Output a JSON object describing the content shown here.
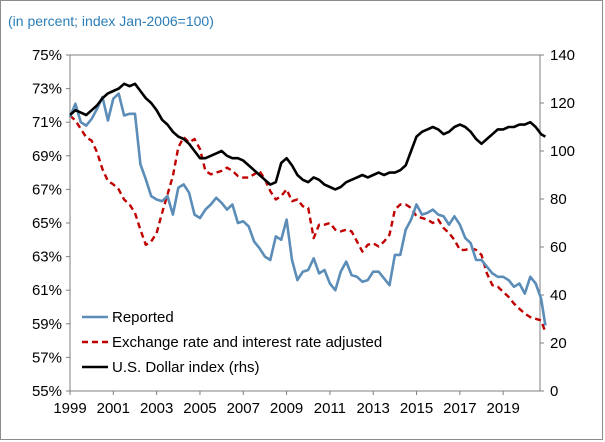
{
  "subtitle": "(in percent; index Jan-2006=100)",
  "chart_data": {
    "type": "line",
    "subtitle": "(in percent; index Jan-2006=100)",
    "x_ticks": [
      "1999",
      "2001",
      "2003",
      "2005",
      "2007",
      "2009",
      "2011",
      "2013",
      "2015",
      "2017",
      "2019"
    ],
    "x_range": [
      1999,
      2020.7
    ],
    "y_left": {
      "ticks": [
        "55%",
        "57%",
        "59%",
        "61%",
        "63%",
        "65%",
        "67%",
        "69%",
        "71%",
        "73%",
        "75%"
      ],
      "range": [
        55,
        75
      ]
    },
    "y_right": {
      "ticks": [
        "0",
        "20",
        "40",
        "60",
        "80",
        "100",
        "120",
        "140"
      ],
      "range": [
        0,
        140
      ]
    },
    "grid": false,
    "legend": {
      "placement": "bottom-left",
      "entries": [
        "Reported",
        "Exchange rate and interest rate adjusted",
        "U.S. Dollar index (rhs)"
      ]
    },
    "series": [
      {
        "name": "Reported",
        "axis": "left",
        "color": "#5b8db8",
        "style": "solid",
        "points": [
          [
            1999.0,
            71.3
          ],
          [
            1999.25,
            72.1
          ],
          [
            1999.5,
            71.0
          ],
          [
            1999.75,
            70.8
          ],
          [
            2000.0,
            71.2
          ],
          [
            2000.25,
            71.8
          ],
          [
            2000.5,
            72.5
          ],
          [
            2000.75,
            71.1
          ],
          [
            2001.0,
            72.4
          ],
          [
            2001.25,
            72.7
          ],
          [
            2001.5,
            71.4
          ],
          [
            2001.75,
            71.5
          ],
          [
            2002.0,
            71.5
          ],
          [
            2002.25,
            68.5
          ],
          [
            2002.5,
            67.6
          ],
          [
            2002.75,
            66.6
          ],
          [
            2003.0,
            66.4
          ],
          [
            2003.25,
            66.3
          ],
          [
            2003.5,
            66.6
          ],
          [
            2003.75,
            65.5
          ],
          [
            2004.0,
            67.1
          ],
          [
            2004.25,
            67.3
          ],
          [
            2004.5,
            66.8
          ],
          [
            2004.75,
            65.5
          ],
          [
            2005.0,
            65.3
          ],
          [
            2005.25,
            65.8
          ],
          [
            2005.5,
            66.1
          ],
          [
            2005.75,
            66.5
          ],
          [
            2006.0,
            66.2
          ],
          [
            2006.25,
            65.8
          ],
          [
            2006.5,
            66.1
          ],
          [
            2006.75,
            65.0
          ],
          [
            2007.0,
            65.1
          ],
          [
            2007.25,
            64.8
          ],
          [
            2007.5,
            63.9
          ],
          [
            2007.75,
            63.5
          ],
          [
            2008.0,
            63.0
          ],
          [
            2008.25,
            62.8
          ],
          [
            2008.5,
            64.2
          ],
          [
            2008.75,
            64.0
          ],
          [
            2009.0,
            65.2
          ],
          [
            2009.25,
            62.8
          ],
          [
            2009.5,
            61.6
          ],
          [
            2009.75,
            62.1
          ],
          [
            2010.0,
            62.2
          ],
          [
            2010.25,
            62.9
          ],
          [
            2010.5,
            62.0
          ],
          [
            2010.75,
            62.2
          ],
          [
            2011.0,
            61.4
          ],
          [
            2011.25,
            61.0
          ],
          [
            2011.5,
            62.1
          ],
          [
            2011.75,
            62.7
          ],
          [
            2012.0,
            61.9
          ],
          [
            2012.25,
            61.8
          ],
          [
            2012.5,
            61.5
          ],
          [
            2012.75,
            61.6
          ],
          [
            2013.0,
            62.1
          ],
          [
            2013.25,
            62.1
          ],
          [
            2013.5,
            61.7
          ],
          [
            2013.75,
            61.3
          ],
          [
            2014.0,
            63.1
          ],
          [
            2014.25,
            63.1
          ],
          [
            2014.5,
            64.6
          ],
          [
            2014.75,
            65.2
          ],
          [
            2015.0,
            66.1
          ],
          [
            2015.25,
            65.5
          ],
          [
            2015.5,
            65.6
          ],
          [
            2015.75,
            65.8
          ],
          [
            2016.0,
            65.5
          ],
          [
            2016.25,
            65.4
          ],
          [
            2016.5,
            64.9
          ],
          [
            2016.75,
            65.4
          ],
          [
            2017.0,
            64.9
          ],
          [
            2017.25,
            64.1
          ],
          [
            2017.5,
            63.8
          ],
          [
            2017.75,
            62.8
          ],
          [
            2018.0,
            62.8
          ],
          [
            2018.25,
            62.4
          ],
          [
            2018.5,
            62.0
          ],
          [
            2018.75,
            61.8
          ],
          [
            2019.0,
            61.8
          ],
          [
            2019.25,
            61.6
          ],
          [
            2019.5,
            61.2
          ],
          [
            2019.75,
            61.4
          ],
          [
            2020.0,
            60.8
          ],
          [
            2020.25,
            61.8
          ],
          [
            2020.5,
            61.4
          ],
          [
            2020.75,
            60.5
          ],
          [
            2020.95,
            58.9
          ]
        ]
      },
      {
        "name": "Exchange rate and interest rate adjusted",
        "axis": "left",
        "color": "#c00000",
        "style": "dashed",
        "points": [
          [
            1999.0,
            71.4
          ],
          [
            1999.25,
            71.1
          ],
          [
            1999.5,
            70.6
          ],
          [
            1999.75,
            70.1
          ],
          [
            2000.0,
            69.9
          ],
          [
            2000.25,
            69.2
          ],
          [
            2000.5,
            68.2
          ],
          [
            2000.75,
            67.5
          ],
          [
            2001.0,
            67.3
          ],
          [
            2001.25,
            67.0
          ],
          [
            2001.5,
            66.4
          ],
          [
            2001.75,
            66.1
          ],
          [
            2002.0,
            65.6
          ],
          [
            2002.25,
            64.6
          ],
          [
            2002.5,
            63.7
          ],
          [
            2002.75,
            63.9
          ],
          [
            2003.0,
            64.4
          ],
          [
            2003.25,
            65.6
          ],
          [
            2003.5,
            66.7
          ],
          [
            2003.75,
            67.8
          ],
          [
            2004.0,
            69.5
          ],
          [
            2004.25,
            70.1
          ],
          [
            2004.5,
            69.8
          ],
          [
            2004.75,
            70.0
          ],
          [
            2005.0,
            69.4
          ],
          [
            2005.25,
            68.1
          ],
          [
            2005.5,
            67.9
          ],
          [
            2005.75,
            68.0
          ],
          [
            2006.0,
            68.1
          ],
          [
            2006.25,
            68.3
          ],
          [
            2006.5,
            68.1
          ],
          [
            2006.75,
            67.8
          ],
          [
            2007.0,
            67.7
          ],
          [
            2007.25,
            67.7
          ],
          [
            2007.5,
            67.9
          ],
          [
            2007.75,
            68.1
          ],
          [
            2008.0,
            67.6
          ],
          [
            2008.25,
            66.9
          ],
          [
            2008.5,
            66.4
          ],
          [
            2008.75,
            66.6
          ],
          [
            2009.0,
            67.0
          ],
          [
            2009.25,
            66.3
          ],
          [
            2009.5,
            66.4
          ],
          [
            2009.75,
            66.0
          ],
          [
            2010.0,
            65.9
          ],
          [
            2010.25,
            64.1
          ],
          [
            2010.5,
            64.9
          ],
          [
            2010.75,
            64.9
          ],
          [
            2011.0,
            65.0
          ],
          [
            2011.25,
            64.6
          ],
          [
            2011.5,
            64.5
          ],
          [
            2011.75,
            64.6
          ],
          [
            2012.0,
            64.5
          ],
          [
            2012.25,
            63.9
          ],
          [
            2012.5,
            63.3
          ],
          [
            2012.75,
            63.7
          ],
          [
            2013.0,
            63.8
          ],
          [
            2013.25,
            63.6
          ],
          [
            2013.5,
            63.9
          ],
          [
            2013.75,
            64.3
          ],
          [
            2014.0,
            65.8
          ],
          [
            2014.25,
            66.1
          ],
          [
            2014.5,
            66.1
          ],
          [
            2014.75,
            65.9
          ],
          [
            2015.0,
            65.4
          ],
          [
            2015.25,
            65.3
          ],
          [
            2015.5,
            65.2
          ],
          [
            2015.75,
            65.0
          ],
          [
            2016.0,
            65.2
          ],
          [
            2016.25,
            64.7
          ],
          [
            2016.5,
            64.4
          ],
          [
            2016.75,
            64.0
          ],
          [
            2017.0,
            63.4
          ],
          [
            2017.25,
            63.4
          ],
          [
            2017.5,
            63.5
          ],
          [
            2017.75,
            63.4
          ],
          [
            2018.0,
            63.1
          ],
          [
            2018.25,
            62.0
          ],
          [
            2018.5,
            61.3
          ],
          [
            2018.75,
            61.2
          ],
          [
            2019.0,
            60.9
          ],
          [
            2019.25,
            60.6
          ],
          [
            2019.5,
            60.2
          ],
          [
            2019.75,
            59.9
          ],
          [
            2020.0,
            59.6
          ],
          [
            2020.25,
            59.4
          ],
          [
            2020.5,
            59.3
          ],
          [
            2020.75,
            59.2
          ],
          [
            2020.95,
            58.5
          ]
        ]
      },
      {
        "name": "U.S. Dollar index (rhs)",
        "axis": "right",
        "color": "#000000",
        "style": "solid",
        "points": [
          [
            1999.0,
            115
          ],
          [
            1999.25,
            117
          ],
          [
            1999.5,
            116
          ],
          [
            1999.75,
            115
          ],
          [
            2000.0,
            117
          ],
          [
            2000.25,
            119
          ],
          [
            2000.5,
            122
          ],
          [
            2000.75,
            124
          ],
          [
            2001.0,
            125
          ],
          [
            2001.25,
            126
          ],
          [
            2001.5,
            128
          ],
          [
            2001.75,
            127
          ],
          [
            2002.0,
            128
          ],
          [
            2002.25,
            125
          ],
          [
            2002.5,
            122
          ],
          [
            2002.75,
            120
          ],
          [
            2003.0,
            117
          ],
          [
            2003.25,
            113
          ],
          [
            2003.5,
            111
          ],
          [
            2003.75,
            108
          ],
          [
            2004.0,
            106
          ],
          [
            2004.25,
            105
          ],
          [
            2004.5,
            103
          ],
          [
            2004.75,
            100
          ],
          [
            2005.0,
            97
          ],
          [
            2005.25,
            97
          ],
          [
            2005.5,
            98
          ],
          [
            2005.75,
            99
          ],
          [
            2006.0,
            100
          ],
          [
            2006.25,
            98
          ],
          [
            2006.5,
            97
          ],
          [
            2006.75,
            97
          ],
          [
            2007.0,
            96
          ],
          [
            2007.25,
            94
          ],
          [
            2007.5,
            92
          ],
          [
            2007.75,
            90
          ],
          [
            2008.0,
            88
          ],
          [
            2008.25,
            86
          ],
          [
            2008.5,
            87
          ],
          [
            2008.75,
            95
          ],
          [
            2009.0,
            97
          ],
          [
            2009.25,
            94
          ],
          [
            2009.5,
            90
          ],
          [
            2009.75,
            88
          ],
          [
            2010.0,
            87
          ],
          [
            2010.25,
            89
          ],
          [
            2010.5,
            88
          ],
          [
            2010.75,
            86
          ],
          [
            2011.0,
            85
          ],
          [
            2011.25,
            84
          ],
          [
            2011.5,
            85
          ],
          [
            2011.75,
            87
          ],
          [
            2012.0,
            88
          ],
          [
            2012.25,
            89
          ],
          [
            2012.5,
            90
          ],
          [
            2012.75,
            89
          ],
          [
            2013.0,
            90
          ],
          [
            2013.25,
            91
          ],
          [
            2013.5,
            90
          ],
          [
            2013.75,
            91
          ],
          [
            2014.0,
            91
          ],
          [
            2014.25,
            92
          ],
          [
            2014.5,
            94
          ],
          [
            2014.75,
            100
          ],
          [
            2015.0,
            106
          ],
          [
            2015.25,
            108
          ],
          [
            2015.5,
            109
          ],
          [
            2015.75,
            110
          ],
          [
            2016.0,
            109
          ],
          [
            2016.25,
            107
          ],
          [
            2016.5,
            108
          ],
          [
            2016.75,
            110
          ],
          [
            2017.0,
            111
          ],
          [
            2017.25,
            110
          ],
          [
            2017.5,
            108
          ],
          [
            2017.75,
            105
          ],
          [
            2018.0,
            103
          ],
          [
            2018.25,
            105
          ],
          [
            2018.5,
            107
          ],
          [
            2018.75,
            109
          ],
          [
            2019.0,
            109
          ],
          [
            2019.25,
            110
          ],
          [
            2019.5,
            110
          ],
          [
            2019.75,
            111
          ],
          [
            2020.0,
            111
          ],
          [
            2020.25,
            112
          ],
          [
            2020.5,
            110
          ],
          [
            2020.75,
            107
          ],
          [
            2020.95,
            106
          ]
        ]
      }
    ]
  }
}
